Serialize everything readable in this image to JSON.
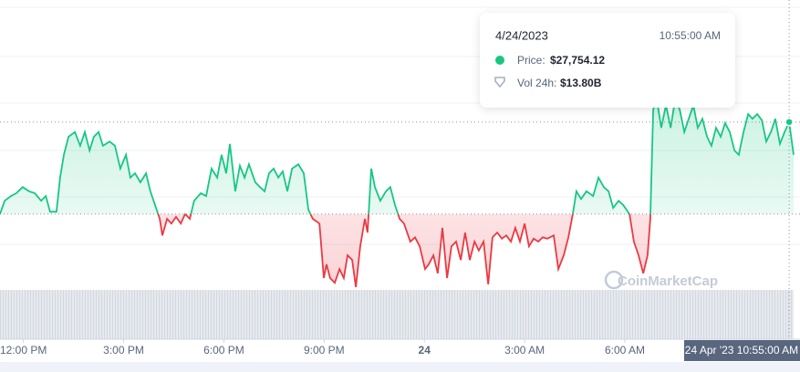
{
  "chart_data": {
    "type": "line",
    "x": [
      11.3,
      11.44,
      11.63,
      11.79,
      11.98,
      12.17,
      12.34,
      12.53,
      12.67,
      12.8,
      12.99,
      13.1,
      13.21,
      13.35,
      13.54,
      13.7,
      13.84,
      13.98,
      14.11,
      14.25,
      14.38,
      14.58,
      14.74,
      14.9,
      15.07,
      15.2,
      15.34,
      15.5,
      15.67,
      15.8,
      15.94,
      16.08,
      16.16,
      16.3,
      16.43,
      16.57,
      16.71,
      16.84,
      16.98,
      17.11,
      17.31,
      17.47,
      17.63,
      17.8,
      17.93,
      18.07,
      18.18,
      18.34,
      18.48,
      18.62,
      18.75,
      18.94,
      19.08,
      19.22,
      19.35,
      19.49,
      19.63,
      19.76,
      19.9,
      20.04,
      20.23,
      20.39,
      20.53,
      20.66,
      20.86,
      20.99,
      21.07,
      21.18,
      21.32,
      21.46,
      21.59,
      21.7,
      21.84,
      21.95,
      22.08,
      22.22,
      22.3,
      22.41,
      22.52,
      22.68,
      22.85,
      22.98,
      23.12,
      23.26,
      23.39,
      23.58,
      23.72,
      23.86,
      24.02,
      24.13,
      24.27,
      24.4,
      24.54,
      24.68,
      24.81,
      24.95,
      25.09,
      25.22,
      25.36,
      25.5,
      25.63,
      25.77,
      25.91,
      26.04,
      26.18,
      26.32,
      26.45,
      26.59,
      26.72,
      26.86,
      27.0,
      27.13,
      27.27,
      27.41,
      27.54,
      27.68,
      27.87,
      28.01,
      28.17,
      28.31,
      28.44,
      28.55,
      28.69,
      28.85,
      29.05,
      29.21,
      29.37,
      29.51,
      29.65,
      29.81,
      29.95,
      30.14,
      30.27,
      30.41,
      30.55,
      30.68,
      30.76,
      30.85,
      30.96,
      31.09,
      31.23,
      31.37,
      31.5,
      31.64,
      31.78,
      31.91,
      32.05,
      32.18,
      32.32,
      32.46,
      32.59,
      32.73,
      32.87,
      33.0,
      33.14,
      33.28,
      33.41,
      33.55,
      33.69,
      33.82,
      33.96,
      34.1,
      34.23,
      34.37,
      34.5,
      34.64,
      34.78,
      34.917,
      35.05
    ],
    "values": [
      27560,
      27588,
      27598,
      27604,
      27617,
      27608,
      27604,
      27588,
      27598,
      27565,
      27565,
      27637,
      27685,
      27723,
      27733,
      27704,
      27733,
      27694,
      27723,
      27733,
      27704,
      27713,
      27704,
      27656,
      27685,
      27637,
      27646,
      27627,
      27646,
      27608,
      27579,
      27550,
      27515,
      27550,
      27540,
      27554,
      27540,
      27560,
      27550,
      27588,
      27604,
      27598,
      27656,
      27637,
      27685,
      27646,
      27708,
      27608,
      27662,
      27637,
      27665,
      27627,
      27617,
      27608,
      27646,
      27656,
      27637,
      27650,
      27608,
      27656,
      27665,
      27646,
      27569,
      27550,
      27540,
      27425,
      27454,
      27425,
      27415,
      27444,
      27425,
      27473,
      27463,
      27406,
      27492,
      27550,
      27521,
      27656,
      27617,
      27588,
      27608,
      27617,
      27579,
      27550,
      27540,
      27502,
      27511,
      27492,
      27444,
      27454,
      27473,
      27435,
      27531,
      27425,
      27492,
      27502,
      27463,
      27521,
      27463,
      27502,
      27483,
      27502,
      27412,
      27511,
      27521,
      27508,
      27515,
      27502,
      27531,
      27502,
      27540,
      27492,
      27508,
      27502,
      27511,
      27508,
      27515,
      27444,
      27473,
      27511,
      27560,
      27608,
      27592,
      27608,
      27598,
      27637,
      27617,
      27608,
      27573,
      27588,
      27579,
      27560,
      27502,
      27473,
      27435,
      27473,
      27550,
      27781,
      27800,
      27742,
      27790,
      27742,
      27800,
      27781,
      27733,
      27761,
      27790,
      27742,
      27761,
      27723,
      27704,
      27742,
      27723,
      27752,
      27733,
      27694,
      27685,
      27733,
      27771,
      27761,
      27771,
      27758,
      27713,
      27733,
      27761,
      27708,
      27733,
      27754.12,
      27685
    ],
    "baseline": 27560,
    "up_color": "#16c784",
    "down_color": "#ea3943",
    "xlim": [
      11.3,
      35.05
    ],
    "ylim": [
      27400,
      28000
    ],
    "xticks": [
      {
        "value": 12,
        "label": "12:00 PM"
      },
      {
        "value": 15,
        "label": "3:00 PM"
      },
      {
        "value": 18,
        "label": "6:00 PM"
      },
      {
        "value": 21,
        "label": "9:00 PM"
      },
      24,
      {
        "value": 27,
        "label": "3:00 AM"
      },
      {
        "value": 30,
        "label": "6:00 AM"
      }
    ],
    "crosshair_label": "24 Apr '23 10:55:00 AM",
    "watermark": "CoinMarketCap",
    "tooltip": {
      "date": "4/24/2023",
      "time": "10:55:00 AM",
      "price_label": "Price:",
      "price": "$27,754.12",
      "volume_label": "Vol 24h:",
      "volume": "$13.80B"
    }
  }
}
